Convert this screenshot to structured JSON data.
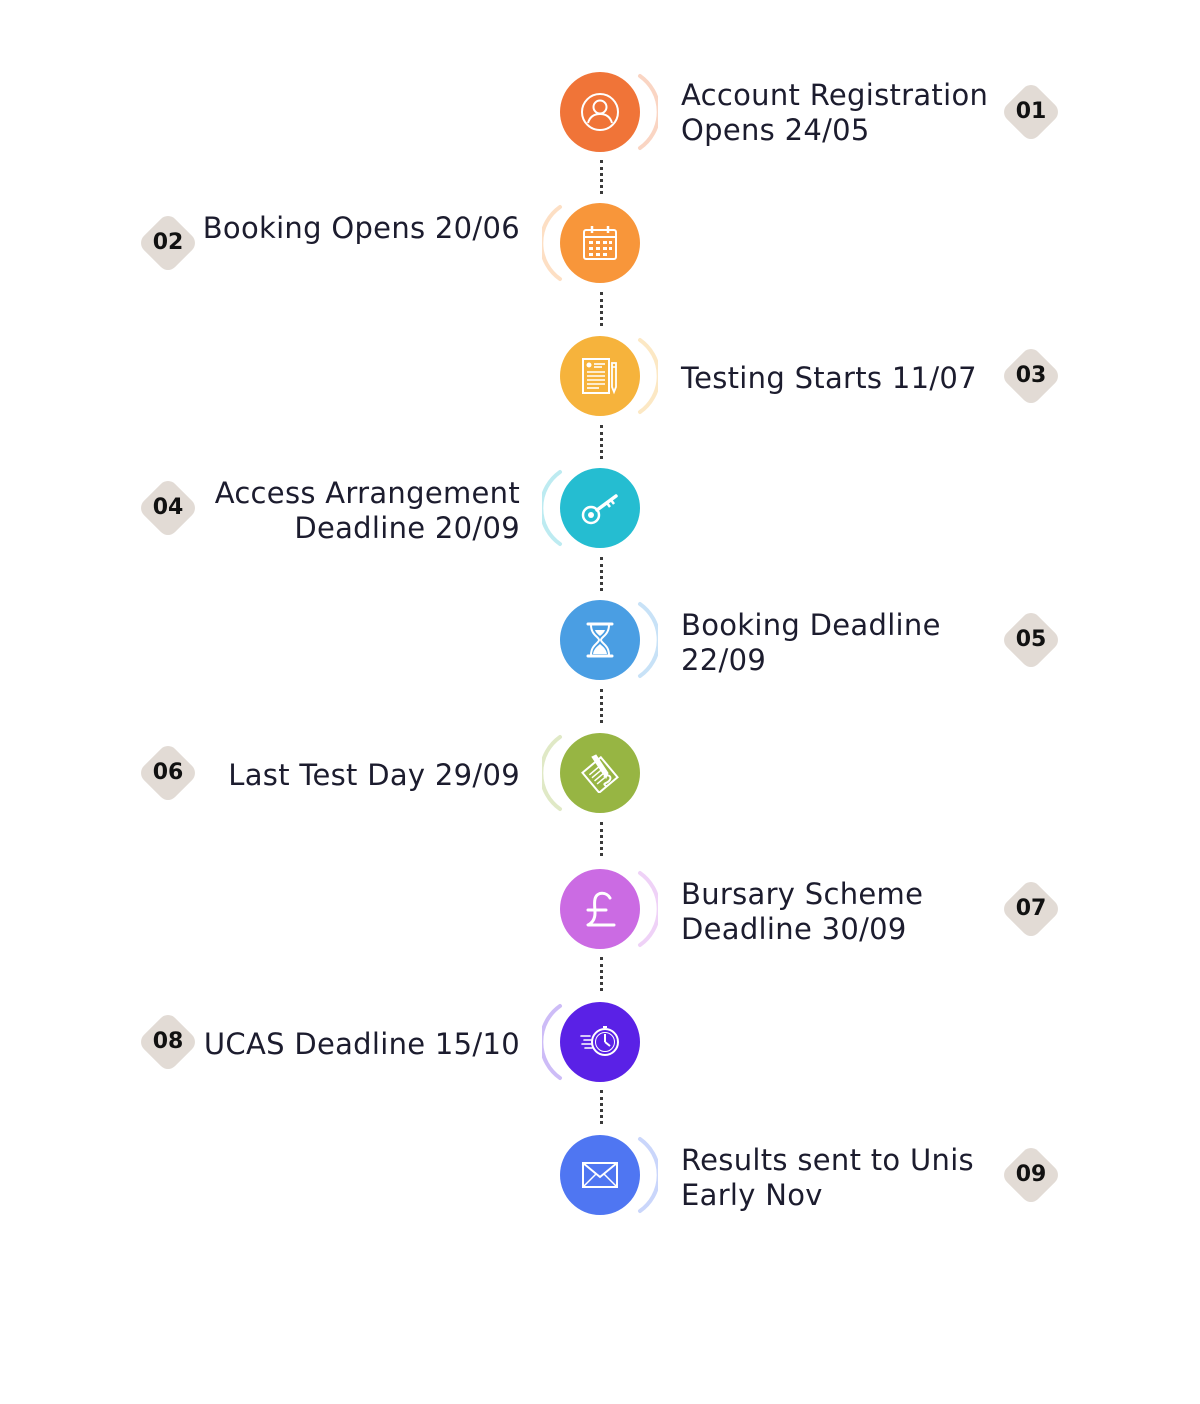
{
  "steps": [
    {
      "number": "01",
      "lines": [
        "Account Registration",
        "Opens 24/05"
      ],
      "side": "right",
      "color": "#f07438",
      "icon": "user-icon"
    },
    {
      "number": "02",
      "lines": [
        "Booking Opens 20/06"
      ],
      "side": "left",
      "color": "#f8963a",
      "icon": "calendar-icon"
    },
    {
      "number": "03",
      "lines": [
        "Testing Starts 11/07"
      ],
      "side": "right",
      "color": "#f6b33c",
      "icon": "test-paper-icon"
    },
    {
      "number": "04",
      "lines": [
        "Access Arrangement",
        "Deadline 20/09"
      ],
      "side": "left",
      "color": "#25bdd1",
      "icon": "key-icon"
    },
    {
      "number": "05",
      "lines": [
        "Booking Deadline",
        "22/09"
      ],
      "side": "right",
      "color": "#4a9ee3",
      "icon": "hourglass-icon"
    },
    {
      "number": "06",
      "lines": [
        "Last Test Day 29/09"
      ],
      "side": "left",
      "color": "#97b543",
      "icon": "document-pen-icon"
    },
    {
      "number": "07",
      "lines": [
        "Bursary Scheme",
        "Deadline 30/09"
      ],
      "side": "right",
      "color": "#cb6be3",
      "icon": "pound-icon"
    },
    {
      "number": "08",
      "lines": [
        "UCAS Deadline 15/10"
      ],
      "side": "left",
      "color": "#5a21e6",
      "icon": "fast-clock-icon"
    },
    {
      "number": "09",
      "lines": [
        "Results sent to Unis",
        "Early Nov"
      ],
      "side": "right",
      "color": "#4f76f2",
      "icon": "envelope-icon"
    }
  ]
}
